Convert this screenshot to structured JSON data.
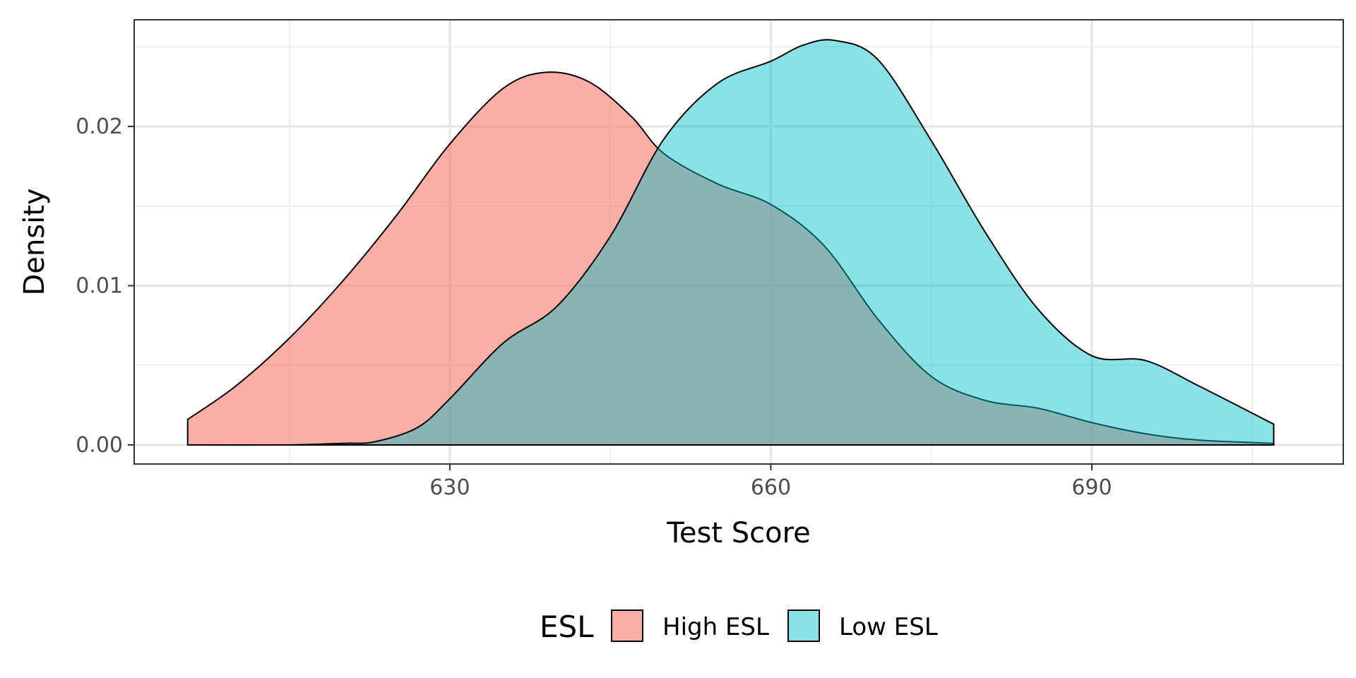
{
  "chart_data": {
    "type": "area",
    "xlabel": "Test Score",
    "ylabel": "Density",
    "xlim": [
      600.5,
      713.5
    ],
    "ylim": [
      -0.0012,
      0.0267
    ],
    "x_ticks": [
      630,
      660,
      690
    ],
    "x_tick_labels": [
      "630",
      "660",
      "690"
    ],
    "x_minor_ticks": [
      615,
      645,
      675,
      705
    ],
    "y_ticks": [
      0.0,
      0.01,
      0.02
    ],
    "y_tick_labels": [
      "0.00",
      "0.01",
      "0.02"
    ],
    "y_minor_ticks": [
      0.005,
      0.015,
      0.025
    ],
    "grid": true,
    "legend": {
      "title": "ESL",
      "position": "bottom",
      "entries": [
        "High ESL",
        "Low ESL"
      ]
    },
    "series": [
      {
        "name": "High ESL",
        "color": "#F8766D",
        "opacity": 0.6,
        "x": [
          605.5,
          610,
          615,
          620,
          625,
          630,
          635,
          639,
          643,
          647,
          650,
          655,
          660,
          665,
          670,
          675,
          680,
          685,
          690,
          695,
          700,
          707
        ],
        "y": [
          0.0016,
          0.0037,
          0.0067,
          0.0103,
          0.0144,
          0.0189,
          0.0224,
          0.0234,
          0.0228,
          0.0206,
          0.0183,
          0.0164,
          0.0151,
          0.0125,
          0.0079,
          0.0043,
          0.0028,
          0.0023,
          0.0014,
          0.0007,
          0.0003,
          0.0001
        ]
      },
      {
        "name": "Low ESL",
        "color": "#00BFC4",
        "opacity": 0.46,
        "x": [
          605.5,
          615,
          620,
          623,
          627,
          630,
          635,
          640,
          645,
          650,
          655,
          660,
          663,
          666,
          670,
          675,
          680,
          685,
          690,
          695,
          700,
          707
        ],
        "y": [
          0.0,
          0.0,
          0.0001,
          0.0002,
          0.0011,
          0.0029,
          0.0064,
          0.0087,
          0.0131,
          0.0192,
          0.0227,
          0.0241,
          0.0251,
          0.0254,
          0.0242,
          0.0191,
          0.0134,
          0.0085,
          0.0056,
          0.0053,
          0.0037,
          0.0013
        ]
      }
    ]
  }
}
